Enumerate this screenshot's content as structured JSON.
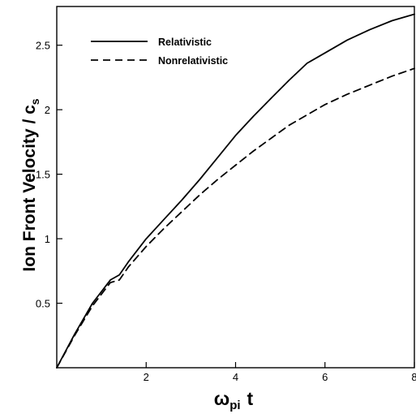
{
  "chart_data": {
    "type": "line",
    "xlabel": {
      "symbol": "ω",
      "subscript": "pi",
      "rest": "t"
    },
    "ylabel": {
      "main": "Ion Front Velocity / c",
      "subscript": "s"
    },
    "xlim": [
      0,
      8
    ],
    "ylim": [
      0,
      2.8
    ],
    "xticks": [
      2,
      4,
      6,
      8
    ],
    "xtick_labels": [
      "2",
      "4",
      "6",
      "8"
    ],
    "yticks": [
      0.5,
      1,
      1.5,
      2,
      2.5
    ],
    "ytick_labels": [
      "0.5",
      "1",
      "1.5",
      "2",
      "2.5"
    ],
    "grid": false,
    "legend_position": "top-left",
    "series": [
      {
        "name": "Relativistic",
        "style": "solid",
        "color": "#000000",
        "x": [
          0,
          0.4,
          0.8,
          1.2,
          1.4,
          1.6,
          2.0,
          2.4,
          2.8,
          3.2,
          3.6,
          4.0,
          4.4,
          4.8,
          5.2,
          5.6,
          6.0,
          6.5,
          7.0,
          7.5,
          8.0
        ],
        "y": [
          0,
          0.26,
          0.5,
          0.68,
          0.72,
          0.82,
          1.0,
          1.15,
          1.3,
          1.46,
          1.63,
          1.8,
          1.95,
          2.09,
          2.23,
          2.36,
          2.44,
          2.54,
          2.62,
          2.69,
          2.74
        ]
      },
      {
        "name": "Nonrelativistic",
        "style": "dashed",
        "color": "#000000",
        "x": [
          0,
          0.4,
          0.8,
          1.2,
          1.4,
          1.6,
          2.0,
          2.4,
          2.8,
          3.2,
          3.6,
          4.0,
          4.4,
          4.8,
          5.2,
          5.6,
          6.0,
          6.5,
          7.0,
          7.5,
          8.0
        ],
        "y": [
          0,
          0.25,
          0.48,
          0.66,
          0.68,
          0.78,
          0.94,
          1.08,
          1.21,
          1.34,
          1.46,
          1.57,
          1.68,
          1.78,
          1.88,
          1.96,
          2.04,
          2.12,
          2.19,
          2.26,
          2.32
        ]
      }
    ]
  }
}
